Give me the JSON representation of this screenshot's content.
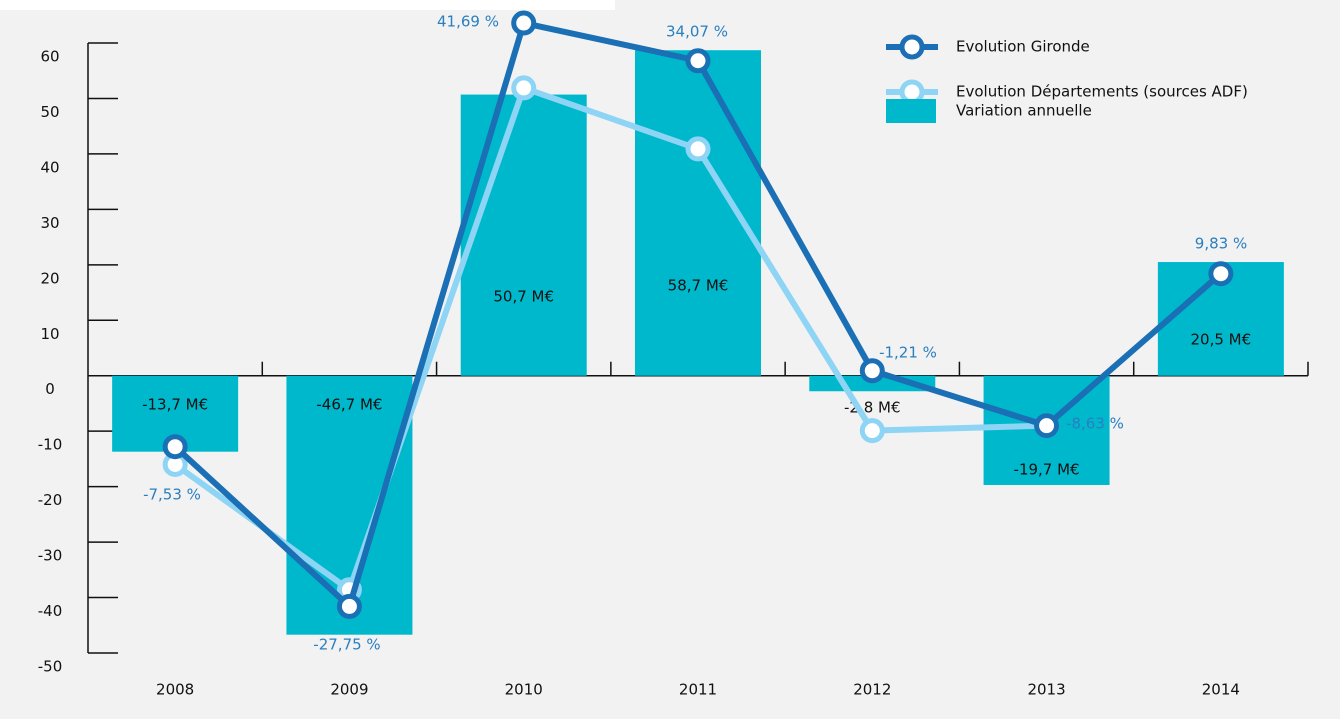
{
  "chart_data": {
    "type": "bar",
    "categories": [
      "2008",
      "2009",
      "2010",
      "2011",
      "2012",
      "2013",
      "2014"
    ],
    "ylim": [
      -50,
      60
    ],
    "yticks": [
      -50,
      -40,
      -30,
      -20,
      -10,
      0,
      10,
      20,
      30,
      40,
      50,
      60
    ],
    "series": [
      {
        "name": "Variation annuelle",
        "type": "bar",
        "color": "#00b8cc",
        "values": [
          -13.7,
          -46.7,
          50.7,
          58.7,
          -2.8,
          -19.7,
          20.5
        ],
        "value_labels": [
          "-13,7 M€",
          "-46,7 M€",
          "50,7 M€",
          "58,7 M€",
          "-2,8 M€",
          "-19,7 M€",
          "20,5 M€"
        ]
      },
      {
        "name": "Evolution Gironde",
        "type": "line",
        "color": "#1a6fb5",
        "values": [
          -12.8,
          -41.6,
          63.6,
          56.8,
          0.9,
          -9,
          18.4
        ]
      },
      {
        "name": "Evolution Départements (sources ADF)",
        "type": "line",
        "color": "#8dd4f5",
        "values": [
          -16,
          -38.6,
          51.9,
          40.9,
          -9.9,
          -9,
          null
        ]
      }
    ],
    "annotations": [
      "-7,53 %",
      "-27,75 %",
      "41,69 %",
      "34,07 %",
      "-1,21 %",
      "-8,63 %",
      "9,83 %"
    ]
  }
}
